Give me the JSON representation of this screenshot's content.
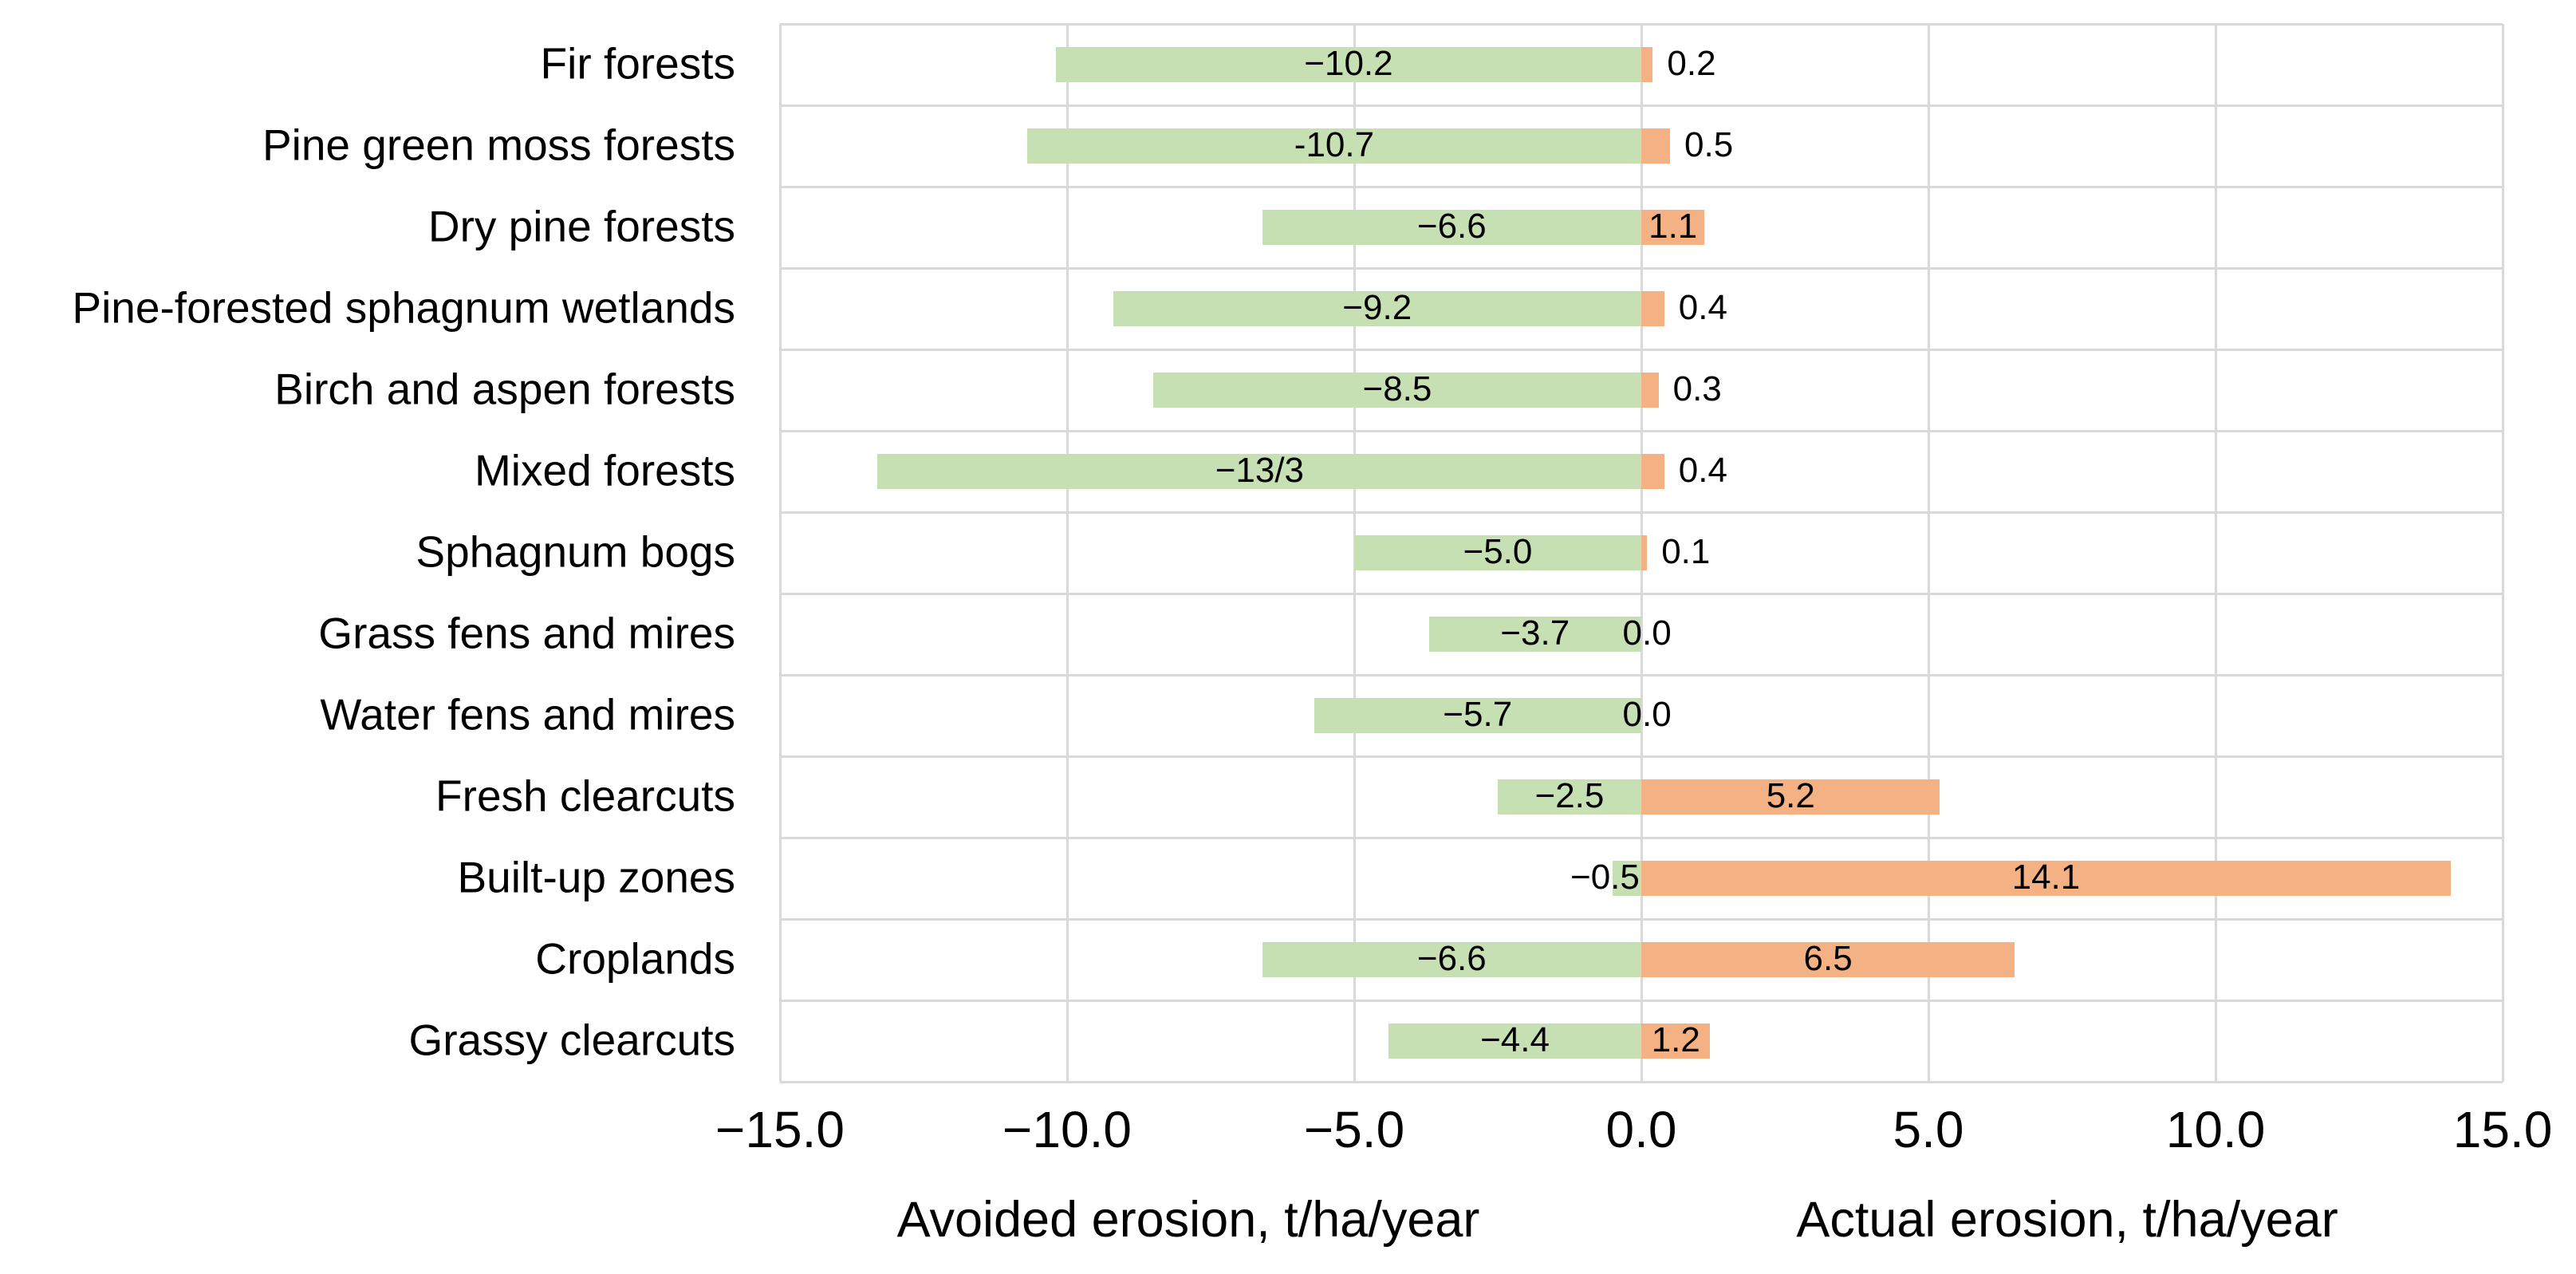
{
  "chart_data": {
    "type": "bar",
    "orientation": "horizontal",
    "title": "",
    "categories": [
      "Fir forests",
      "Pine green moss forests",
      "Dry pine forests",
      "Pine-forested sphagnum wetlands",
      "Birch and aspen forests",
      "Mixed forests",
      "Sphagnum bogs",
      "Grass fens and mires",
      "Water fens and mires",
      "Fresh clearcuts",
      "Built-up zones",
      "Croplands",
      "Grassy clearcuts"
    ],
    "series": [
      {
        "name": "Avoided erosion, t/ha/year",
        "color": "#c6e0b4",
        "values": [
          -10.2,
          -10.7,
          -6.6,
          -9.2,
          -8.5,
          -13.3,
          -5.0,
          -3.7,
          -5.7,
          -2.5,
          -0.5,
          -6.6,
          -4.4
        ],
        "labels": [
          "−10.2",
          "-10.7",
          "−6.6",
          "−9.2",
          "−8.5",
          "−13/3",
          "−5.0",
          "−3.7",
          "−5.7",
          "−2.5",
          "−0.5",
          "−6.6",
          "−4.4"
        ]
      },
      {
        "name": "Actual erosion, t/ha/year",
        "color": "#f4b183",
        "values": [
          0.2,
          0.5,
          1.1,
          0.4,
          0.3,
          0.4,
          0.1,
          0.0,
          0.0,
          5.2,
          14.1,
          6.5,
          1.2
        ],
        "labels": [
          "0.2",
          "0.5",
          "1.1",
          "0.4",
          "0.3",
          "0.4",
          "0.1",
          "0.0",
          "0.0",
          "5.2",
          "14.1",
          "6.5",
          "1.2"
        ]
      }
    ],
    "x_axis": {
      "min": -15,
      "max": 15,
      "tick_interval": 5,
      "tick_labels": [
        "−15.0",
        "−10.0",
        "−5.0",
        "0.0",
        "5.0",
        "10.0",
        "15.0"
      ]
    },
    "axis_titles": {
      "left": "Avoided erosion, t/ha/year",
      "right": "Actual erosion, t/ha/year"
    },
    "grid": "both",
    "gridline_color": "#d9d9d9",
    "legend_position": "none"
  }
}
